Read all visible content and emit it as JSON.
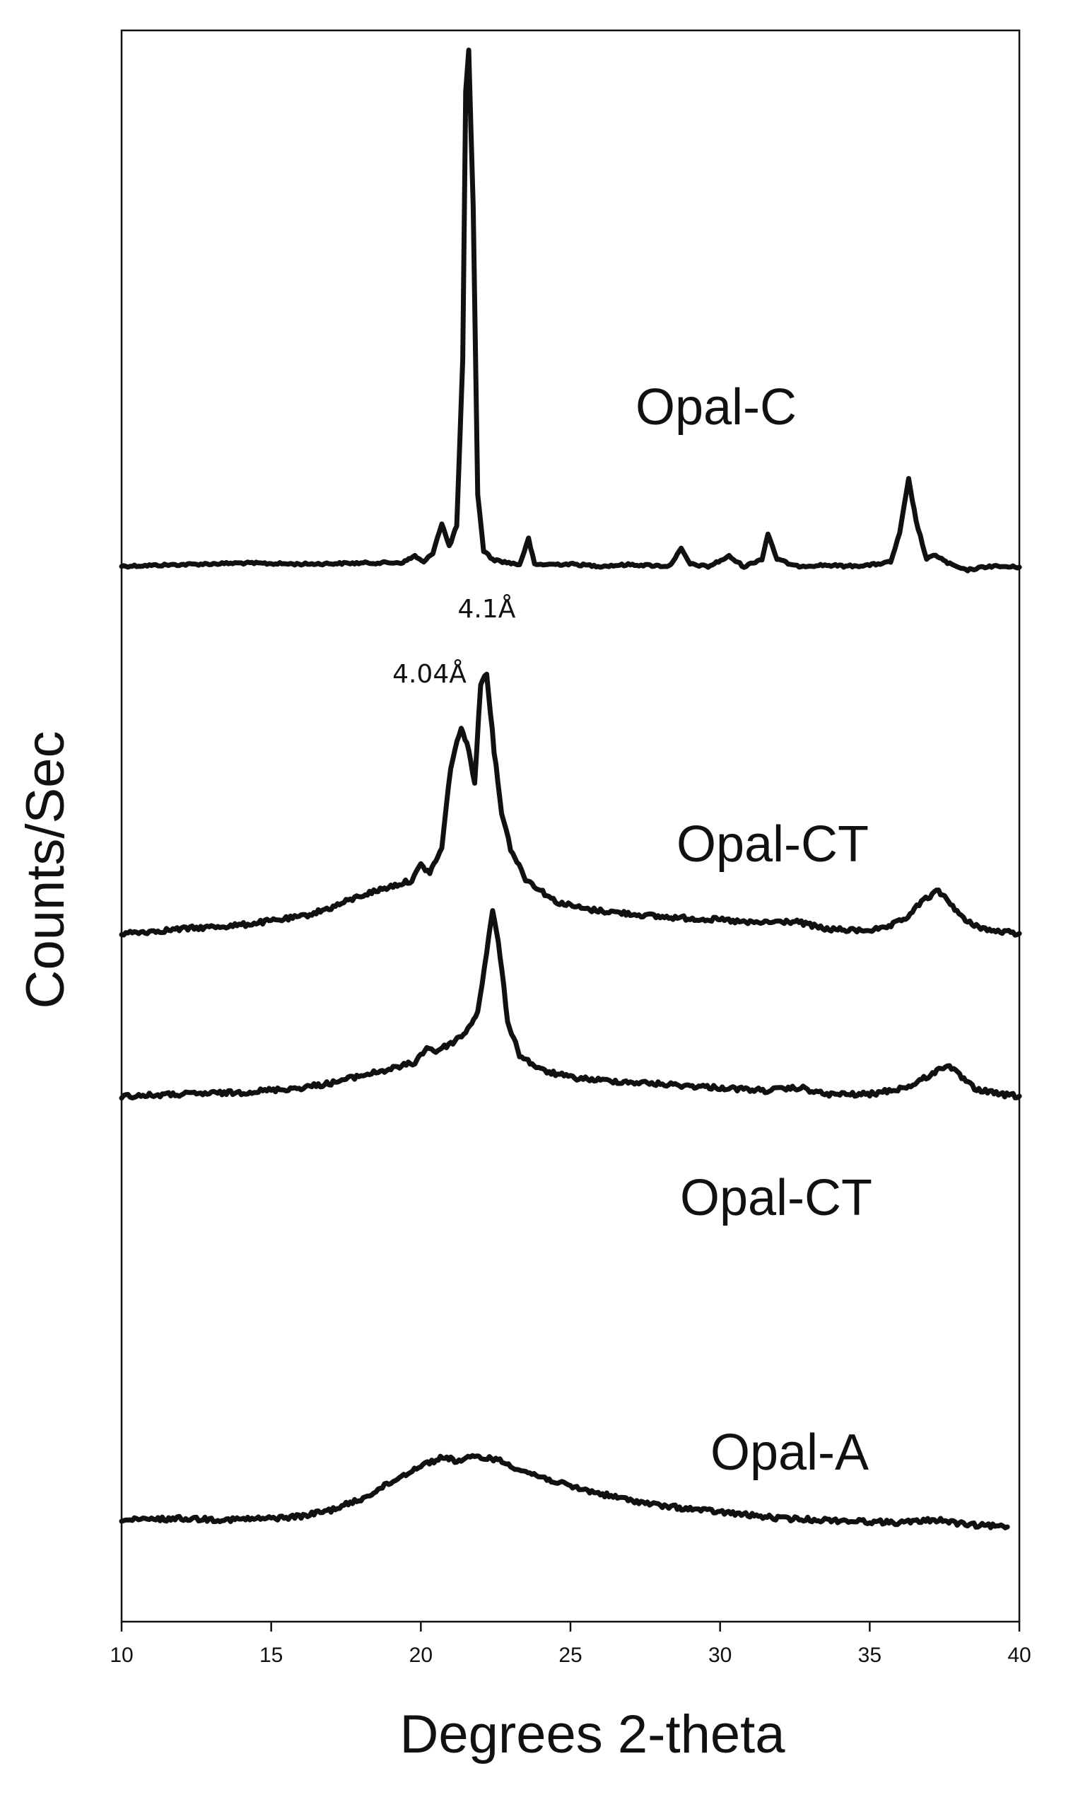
{
  "chart_data": {
    "type": "line",
    "xlabel": "Degrees 2-theta",
    "ylabel": "Counts/Sec",
    "xlim": [
      10,
      40
    ],
    "x_ticks": [
      10,
      15,
      20,
      25,
      30,
      35,
      40
    ],
    "grid": false,
    "stacked_offset_traces": true,
    "series": [
      {
        "name": "Opal-C",
        "points": [
          [
            10,
            0.2
          ],
          [
            12,
            0.5
          ],
          [
            14,
            0.8
          ],
          [
            16,
            0.6
          ],
          [
            18,
            0.8
          ],
          [
            19.4,
            0.9
          ],
          [
            19.8,
            2.2
          ],
          [
            20.1,
            0.9
          ],
          [
            20.4,
            2.8
          ],
          [
            20.7,
            8.5
          ],
          [
            20.95,
            4.0
          ],
          [
            21.2,
            8.0
          ],
          [
            21.4,
            40
          ],
          [
            21.5,
            92
          ],
          [
            21.6,
            100
          ],
          [
            21.75,
            70
          ],
          [
            21.9,
            14
          ],
          [
            22.1,
            3.2
          ],
          [
            22.4,
            1.5
          ],
          [
            22.8,
            1.0
          ],
          [
            23.3,
            0.5
          ],
          [
            23.6,
            5.5
          ],
          [
            23.8,
            0.5
          ],
          [
            25,
            0.6
          ],
          [
            26,
            0.2
          ],
          [
            27,
            0.5
          ],
          [
            28.3,
            0.2
          ],
          [
            28.7,
            3.5
          ],
          [
            29.0,
            0.6
          ],
          [
            29.6,
            0.1
          ],
          [
            30.3,
            2.1
          ],
          [
            30.8,
            0.1
          ],
          [
            31.4,
            1.6
          ],
          [
            31.6,
            6.5
          ],
          [
            31.9,
            1.6
          ],
          [
            32.5,
            0.2
          ],
          [
            33.5,
            0.4
          ],
          [
            34.2,
            0.2
          ],
          [
            35,
            0.4
          ],
          [
            35.7,
            1.0
          ],
          [
            36.0,
            6.5
          ],
          [
            36.3,
            17.0
          ],
          [
            36.55,
            9.0
          ],
          [
            36.9,
            1.5
          ],
          [
            37.2,
            2.4
          ],
          [
            37.6,
            0.8
          ],
          [
            38.2,
            -0.6
          ],
          [
            39,
            0.2
          ],
          [
            40,
            0
          ]
        ]
      },
      {
        "name": "Opal-CT",
        "points": [
          [
            10,
            0
          ],
          [
            12,
            1.5
          ],
          [
            14,
            2.8
          ],
          [
            16,
            5.5
          ],
          [
            17,
            8.5
          ],
          [
            18,
            12.5
          ],
          [
            19,
            15.5
          ],
          [
            19.7,
            17.5
          ],
          [
            20.0,
            22.5
          ],
          [
            20.3,
            20.0
          ],
          [
            20.7,
            28.0
          ],
          [
            21.0,
            55.0
          ],
          [
            21.35,
            68.0
          ],
          [
            21.6,
            60.0
          ],
          [
            21.8,
            50.0
          ],
          [
            22.0,
            82.0
          ],
          [
            22.2,
            86.0
          ],
          [
            22.45,
            60.0
          ],
          [
            22.7,
            40.0
          ],
          [
            23.0,
            28.0
          ],
          [
            23.5,
            18.0
          ],
          [
            24.5,
            10.5
          ],
          [
            25.5,
            8.0
          ],
          [
            26.5,
            7.0
          ],
          [
            28,
            5.5
          ],
          [
            30,
            4.5
          ],
          [
            31,
            3.5
          ],
          [
            32.5,
            4.0
          ],
          [
            33.5,
            1.5
          ],
          [
            34.5,
            1.0
          ],
          [
            35.5,
            1.5
          ],
          [
            36.2,
            5.0
          ],
          [
            36.8,
            11.0
          ],
          [
            37.3,
            14.0
          ],
          [
            37.7,
            10.0
          ],
          [
            38.2,
            4.0
          ],
          [
            39,
            1.0
          ],
          [
            40,
            0
          ]
        ]
      },
      {
        "name": "Opal-CT",
        "points": [
          [
            10,
            0
          ],
          [
            12,
            1.0
          ],
          [
            14,
            2.0
          ],
          [
            16,
            4.5
          ],
          [
            17,
            7.0
          ],
          [
            18,
            11.0
          ],
          [
            19,
            14.5
          ],
          [
            19.8,
            18.0
          ],
          [
            20.2,
            26.0
          ],
          [
            20.5,
            24.0
          ],
          [
            21.0,
            28.0
          ],
          [
            21.5,
            34.0
          ],
          [
            21.9,
            45.0
          ],
          [
            22.2,
            76.0
          ],
          [
            22.4,
            100.0
          ],
          [
            22.65,
            75.0
          ],
          [
            22.9,
            40.0
          ],
          [
            23.3,
            22.0
          ],
          [
            24,
            14.0
          ],
          [
            25,
            10.0
          ],
          [
            26,
            8.5
          ],
          [
            28,
            6.5
          ],
          [
            30,
            4.5
          ],
          [
            31.5,
            3.0
          ],
          [
            32.7,
            4.5
          ],
          [
            33.5,
            1.0
          ],
          [
            35,
            1.0
          ],
          [
            36.3,
            5.0
          ],
          [
            37.1,
            12.0
          ],
          [
            37.6,
            17.0
          ],
          [
            38.0,
            11.0
          ],
          [
            38.5,
            4.0
          ],
          [
            39.3,
            1.0
          ],
          [
            40,
            0
          ]
        ]
      },
      {
        "name": "Opal-A",
        "points": [
          [
            10,
            0
          ],
          [
            12,
            0.5
          ],
          [
            13.5,
            0.2
          ],
          [
            15,
            0.5
          ],
          [
            16,
            1.0
          ],
          [
            17,
            2.5
          ],
          [
            18,
            5.0
          ],
          [
            19,
            9.0
          ],
          [
            20,
            13.0
          ],
          [
            20.8,
            15.0
          ],
          [
            21.2,
            14.0
          ],
          [
            21.8,
            15.0
          ],
          [
            22.5,
            14.5
          ],
          [
            23.5,
            11.5
          ],
          [
            25,
            8.0
          ],
          [
            26.5,
            5.5
          ],
          [
            28,
            3.5
          ],
          [
            30,
            2.0
          ],
          [
            32,
            0.5
          ],
          [
            34,
            0
          ],
          [
            36,
            -0.5
          ],
          [
            37.3,
            0.2
          ],
          [
            38.2,
            -1.0
          ],
          [
            39.6,
            -1.5
          ]
        ]
      }
    ],
    "annotations": [
      {
        "text": "4.1Å",
        "x": 22.2
      },
      {
        "text": "4.04Å",
        "x": 21.35
      }
    ]
  }
}
